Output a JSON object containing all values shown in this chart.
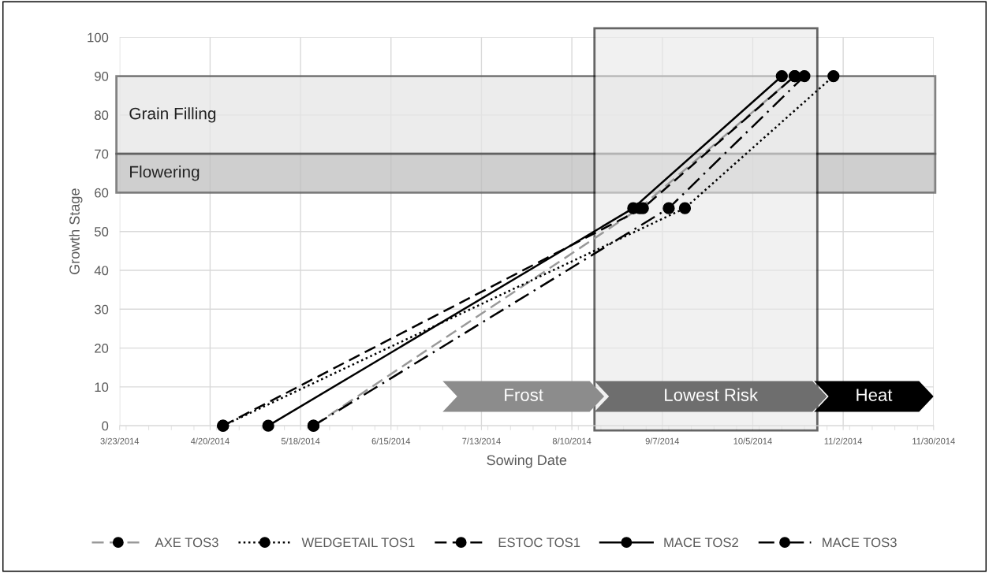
{
  "chart_data": {
    "type": "line",
    "xlabel": "Sowing Date",
    "ylabel": "Growth Stage",
    "xlim": [
      "2014-03-23",
      "2014-11-30"
    ],
    "xticks": [
      {
        "value": "2014-03-23",
        "label": "3/23/2014"
      },
      {
        "value": "2014-04-20",
        "label": "4/20/2014"
      },
      {
        "value": "2014-05-18",
        "label": "5/18/2014"
      },
      {
        "value": "2014-06-15",
        "label": "6/15/2014"
      },
      {
        "value": "2014-07-13",
        "label": "7/13/2014"
      },
      {
        "value": "2014-08-10",
        "label": "8/10/2014"
      },
      {
        "value": "2014-09-07",
        "label": "9/7/2014"
      },
      {
        "value": "2014-10-05",
        "label": "10/5/2014"
      },
      {
        "value": "2014-11-02",
        "label": "11/2/2014"
      },
      {
        "value": "2014-11-30",
        "label": "11/30/2014"
      }
    ],
    "ylim": [
      0,
      100
    ],
    "yticks": [
      0,
      10,
      20,
      30,
      40,
      50,
      60,
      70,
      80,
      90,
      100
    ],
    "grid": true,
    "legend": "bottom",
    "marker": "circle",
    "series": [
      {
        "name": "AXE TOS3",
        "color": "#999999",
        "line_style": "dashed",
        "x": [
          "2014-05-22",
          "2014-08-31",
          "2014-10-18"
        ],
        "values": [
          0,
          56,
          90
        ]
      },
      {
        "name": "WEDGETAIL TOS1",
        "color": "#000000",
        "line_style": "dotted",
        "x": [
          "2014-04-24",
          "2014-09-14",
          "2014-10-30"
        ],
        "values": [
          0,
          56,
          90
        ]
      },
      {
        "name": "ESTOC TOS1",
        "color": "#000000",
        "line_style": "dashed",
        "x": [
          "2014-04-24",
          "2014-09-01",
          "2014-10-18"
        ],
        "values": [
          0,
          56,
          90
        ]
      },
      {
        "name": "MACE TOS2",
        "color": "#000000",
        "line_style": "solid",
        "x": [
          "2014-05-08",
          "2014-08-29",
          "2014-10-14"
        ],
        "values": [
          0,
          56,
          90
        ]
      },
      {
        "name": "MACE TOS3",
        "color": "#000000",
        "line_style": "dashdot",
        "x": [
          "2014-05-22",
          "2014-09-09",
          "2014-10-21"
        ],
        "values": [
          0,
          56,
          90
        ]
      }
    ],
    "bands": [
      {
        "axis": "y",
        "from": 70,
        "to": 90,
        "label": "Grain Filling",
        "color": "#e6e6e6"
      },
      {
        "axis": "y",
        "from": 60,
        "to": 70,
        "label": "Flowering",
        "color": "#bfbfbf"
      },
      {
        "axis": "x",
        "from": "2014-08-17",
        "to": "2014-10-25",
        "color": "#e9e9e9"
      },
      {
        "axis": "x",
        "from": "2014-07-01",
        "to": "2014-08-20",
        "label": "Frost",
        "color": "#8c8c8c"
      },
      {
        "axis": "x",
        "from": "2014-08-17",
        "to": "2014-10-28",
        "label": "Lowest Risk",
        "color": "#6e6e6e"
      },
      {
        "axis": "x",
        "from": "2014-10-24",
        "to": "2014-11-30",
        "label": "Heat",
        "color": "#000000"
      }
    ]
  }
}
